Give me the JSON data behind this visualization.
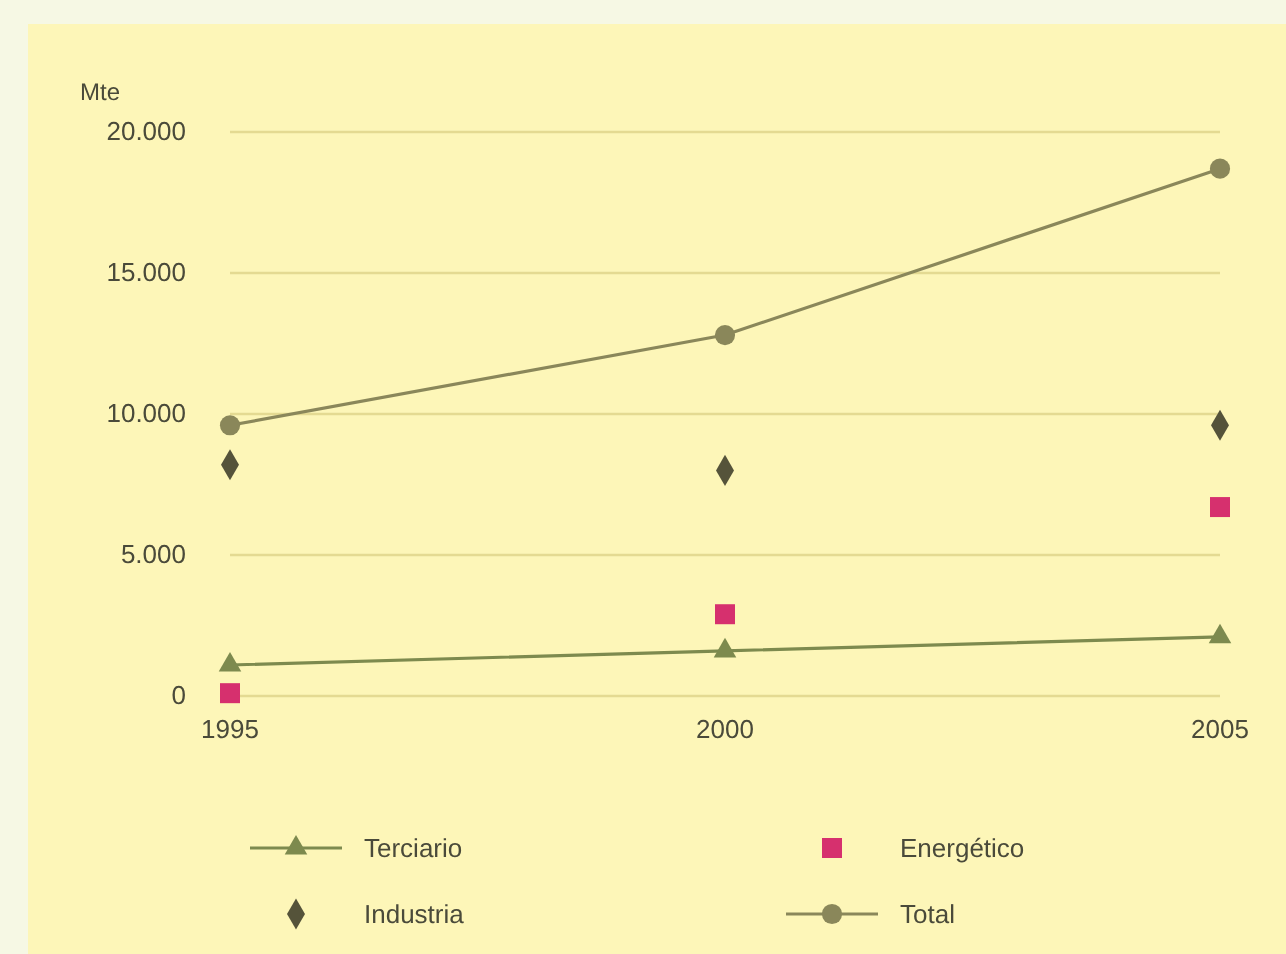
{
  "chart_data": {
    "type": "line",
    "ylabel": "Mte",
    "x": [
      1995,
      2000,
      2005
    ],
    "xlim": [
      1995,
      2005
    ],
    "xticks": [
      1995,
      2000,
      2005
    ],
    "ylim": [
      0,
      20000
    ],
    "yticks": [
      {
        "value": 0,
        "label": "0"
      },
      {
        "value": 5000,
        "label": "5.000"
      },
      {
        "value": 10000,
        "label": "10.000"
      },
      {
        "value": 15000,
        "label": "15.000"
      },
      {
        "value": 20000,
        "label": "20.000"
      }
    ],
    "grid": "y",
    "legend": "bottom",
    "series": [
      {
        "name": "Terciario",
        "marker": "triangle",
        "color": "#7d8a4e",
        "values": [
          1100,
          1600,
          2100
        ]
      },
      {
        "name": "Energético",
        "type": "scatter",
        "marker": "square",
        "color": "#d6306e",
        "values": [
          100,
          2900,
          6700
        ]
      },
      {
        "name": "Industria",
        "type": "scatter",
        "marker": "diamond",
        "color": "#55533a",
        "values": [
          8200,
          8000,
          9600
        ]
      },
      {
        "name": "Total",
        "marker": "circle",
        "color": "#8a875a",
        "values": [
          9600,
          12800,
          18700
        ]
      }
    ]
  }
}
